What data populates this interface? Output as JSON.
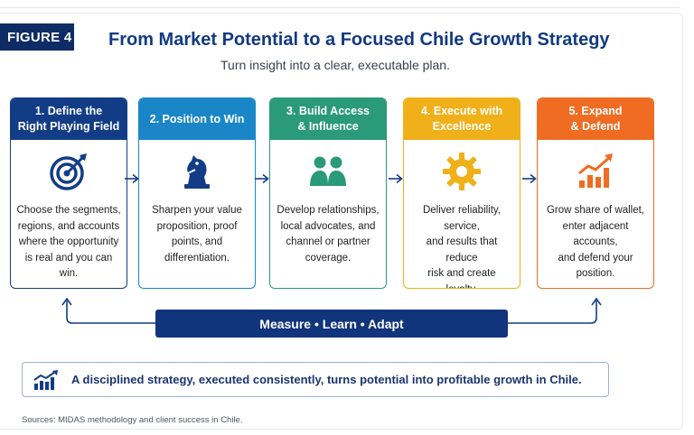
{
  "figure_label": "FIGURE 4",
  "title": "From Market Potential to a Focused Chile Growth Strategy",
  "subtitle": "Turn insight into a clear, executable plan.",
  "steps": [
    {
      "heading": "1. Define the\nRight Playing Field",
      "icon": "target-icon",
      "text": "Choose the segments,\nregions, and accounts\nwhere the opportunity\nis real and you can win.",
      "color": "#123d86"
    },
    {
      "heading": "2. Position to Win",
      "icon": "chess-knight-icon",
      "text": "Sharpen your value\nproposition, proof\npoints, and\ndifferentiation.",
      "color": "#1a86c8"
    },
    {
      "heading": "3. Build Access\n& Influence",
      "icon": "people-icon",
      "text": "Develop relationships,\nlocal advocates, and\nchannel or partner\ncoverage.",
      "color": "#2a9a78"
    },
    {
      "heading": "4. Execute with\nExcellence",
      "icon": "gear-icon",
      "text": "Deliver reliability, service,\nand results that reduce\nrisk and create\nloyalty.",
      "color": "#f0b01a"
    },
    {
      "heading": "5. Expand\n& Defend",
      "icon": "growth-chart-icon",
      "text": "Grow share of wallet,\nenter adjacent accounts,\nand defend your\nposition.",
      "color": "#ef6c22"
    }
  ],
  "loop_label": "Measure • Learn • Adapt",
  "callout": {
    "icon": "bar-chart-trend-icon",
    "text": "A disciplined strategy, executed consistently, turns potential into profitable growth in Chile."
  },
  "source": "Sources: MIDAS methodology and client success in Chile."
}
